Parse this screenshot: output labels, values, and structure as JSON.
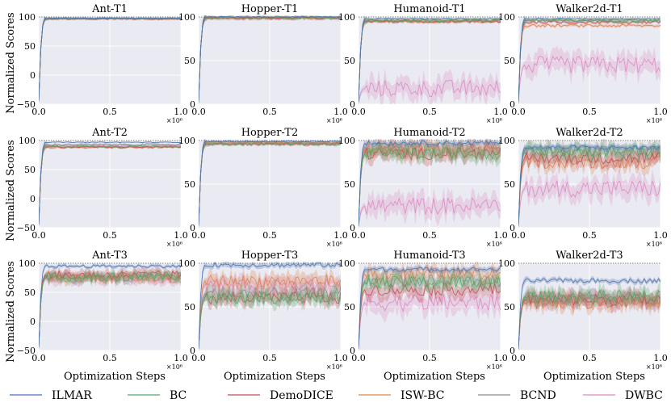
{
  "chart_data": {
    "type": "line",
    "ylabel": "Normalized Scores",
    "xlabel": "Optimization Steps",
    "x_multiplier_label": "×10⁶",
    "xlim": [
      0,
      1.0
    ],
    "xticks": [
      "0.0",
      "0.5",
      "1.0"
    ],
    "reference_line": 100,
    "series_colors": {
      "ILMAR": "#4c72b0",
      "BC": "#55a868",
      "DemoDICE": "#c44e52",
      "ISW-BC": "#dd8452",
      "BCND": "#8c8c8c",
      "DWBC": "#da8bc3"
    },
    "legend": [
      "ILMAR",
      "BC",
      "DemoDICE",
      "ISW-BC",
      "BCND",
      "DWBC"
    ],
    "panels": [
      {
        "title": "Ant-T1",
        "ylim": [
          -50,
          100
        ],
        "yticks": [
          "−50",
          "0",
          "50",
          "100"
        ],
        "plateau": {
          "ILMAR": 98,
          "BC": 97,
          "DemoDICE": 97,
          "ISW-BC": 97,
          "BCND": 97,
          "DWBC": 97
        }
      },
      {
        "title": "Hopper-T1",
        "ylim": [
          0,
          100
        ],
        "yticks": [
          "0",
          "50",
          "100"
        ],
        "plateau": {
          "ILMAR": 100,
          "BC": 99,
          "DemoDICE": 99,
          "ISW-BC": 99,
          "BCND": 99,
          "DWBC": 99
        }
      },
      {
        "title": "Humanoid-T1",
        "ylim": [
          0,
          100
        ],
        "yticks": [
          "0",
          "50",
          "100"
        ],
        "plateau": {
          "ILMAR": 98,
          "BC": 96,
          "DemoDICE": 95,
          "ISW-BC": 95,
          "BCND": 96,
          "DWBC": 18
        }
      },
      {
        "title": "Walker2d-T1",
        "ylim": [
          0,
          100
        ],
        "yticks": [
          "0",
          "50",
          "100"
        ],
        "plateau": {
          "ILMAR": 98,
          "BC": 96,
          "DemoDICE": 94,
          "ISW-BC": 90,
          "BCND": 96,
          "DWBC": 45
        }
      },
      {
        "title": "Ant-T2",
        "ylim": [
          -50,
          100
        ],
        "yticks": [
          "−50",
          "0",
          "50",
          "100"
        ],
        "plateau": {
          "ILMAR": 97,
          "BC": 90,
          "DemoDICE": 89,
          "ISW-BC": 88,
          "BCND": 93,
          "DWBC": 91
        }
      },
      {
        "title": "Hopper-T2",
        "ylim": [
          0,
          100
        ],
        "yticks": [
          "0",
          "50",
          "100"
        ],
        "plateau": {
          "ILMAR": 99,
          "BC": 96,
          "DemoDICE": 96,
          "ISW-BC": 97,
          "BCND": 98,
          "DWBC": 97
        }
      },
      {
        "title": "Humanoid-T2",
        "ylim": [
          0,
          100
        ],
        "yticks": [
          "0",
          "50",
          "100"
        ],
        "plateau": {
          "ILMAR": 97,
          "BC": 85,
          "DemoDICE": 85,
          "ISW-BC": 90,
          "BCND": 92,
          "DWBC": 25
        }
      },
      {
        "title": "Walker2d-T2",
        "ylim": [
          0,
          100
        ],
        "yticks": [
          "0",
          "50",
          "100"
        ],
        "plateau": {
          "ILMAR": 92,
          "BC": 88,
          "DemoDICE": 80,
          "ISW-BC": 75,
          "BCND": 87,
          "DWBC": 45
        }
      },
      {
        "title": "Ant-T3",
        "ylim": [
          -50,
          100
        ],
        "yticks": [
          "−50",
          "0",
          "50",
          "100"
        ],
        "plateau": {
          "ILMAR": 95,
          "BC": 75,
          "DemoDICE": 80,
          "ISW-BC": 75,
          "BCND": 78,
          "DWBC": 73
        }
      },
      {
        "title": "Hopper-T3",
        "ylim": [
          0,
          100
        ],
        "yticks": [
          "0",
          "50",
          "100"
        ],
        "plateau": {
          "ILMAR": 98,
          "BC": 60,
          "DemoDICE": 60,
          "ISW-BC": 80,
          "BCND": 65,
          "DWBC": 75
        }
      },
      {
        "title": "Humanoid-T3",
        "ylim": [
          0,
          100
        ],
        "yticks": [
          "0",
          "50",
          "100"
        ],
        "plateau": {
          "ILMAR": 93,
          "BC": 78,
          "DemoDICE": 70,
          "ISW-BC": 88,
          "BCND": 80,
          "DWBC": 55
        }
      },
      {
        "title": "Walker2d-T3",
        "ylim": [
          0,
          100
        ],
        "yticks": [
          "0",
          "50",
          "100"
        ],
        "plateau": {
          "ILMAR": 80,
          "BC": 62,
          "DemoDICE": 58,
          "ISW-BC": 55,
          "BCND": 60,
          "DWBC": 58
        }
      }
    ]
  }
}
